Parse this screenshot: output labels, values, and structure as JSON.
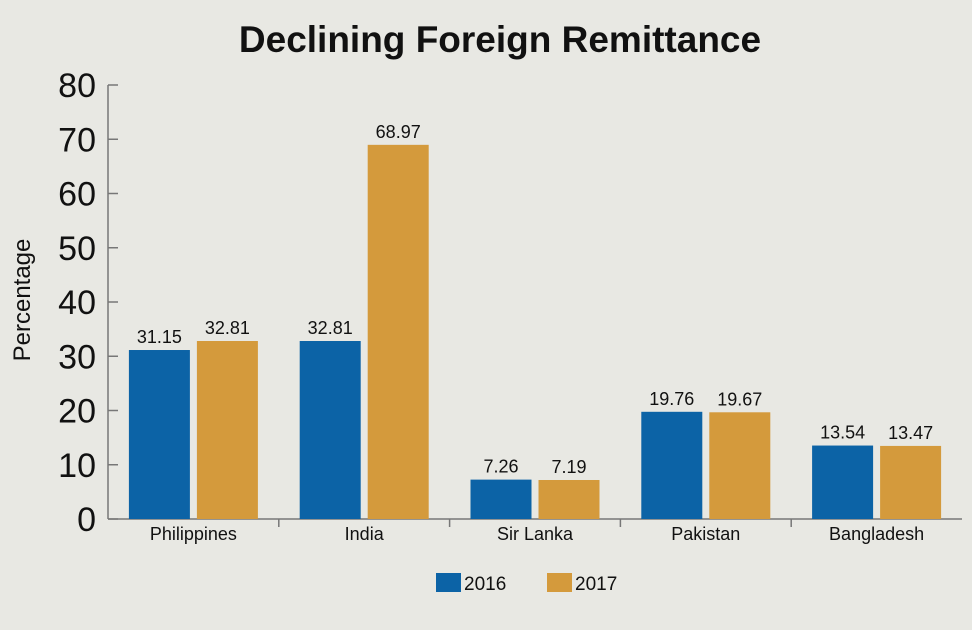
{
  "chart_data": {
    "type": "bar",
    "title": "Declining Foreign Remittance",
    "xlabel": "",
    "ylabel": "Percentage",
    "ylim": [
      0,
      80
    ],
    "yticks": [
      0,
      10,
      20,
      30,
      40,
      50,
      60,
      70,
      80
    ],
    "grid": false,
    "legend_position": "bottom",
    "categories": [
      "Philippines",
      "India",
      "Sir Lanka",
      "Pakistan",
      "Bangladesh"
    ],
    "series": [
      {
        "name": "2016",
        "color": "#0c63a6",
        "values": [
          31.15,
          32.81,
          7.26,
          19.76,
          13.54
        ]
      },
      {
        "name": "2017",
        "color": "#d49a3c",
        "values": [
          32.81,
          68.97,
          7.19,
          19.67,
          13.47
        ]
      }
    ],
    "data_labels": [
      [
        "31.15",
        "32.81",
        "7.26",
        "19.76",
        "13.54"
      ],
      [
        "32.81",
        "68.97",
        "7.19",
        "19.67",
        "13.47"
      ]
    ]
  }
}
